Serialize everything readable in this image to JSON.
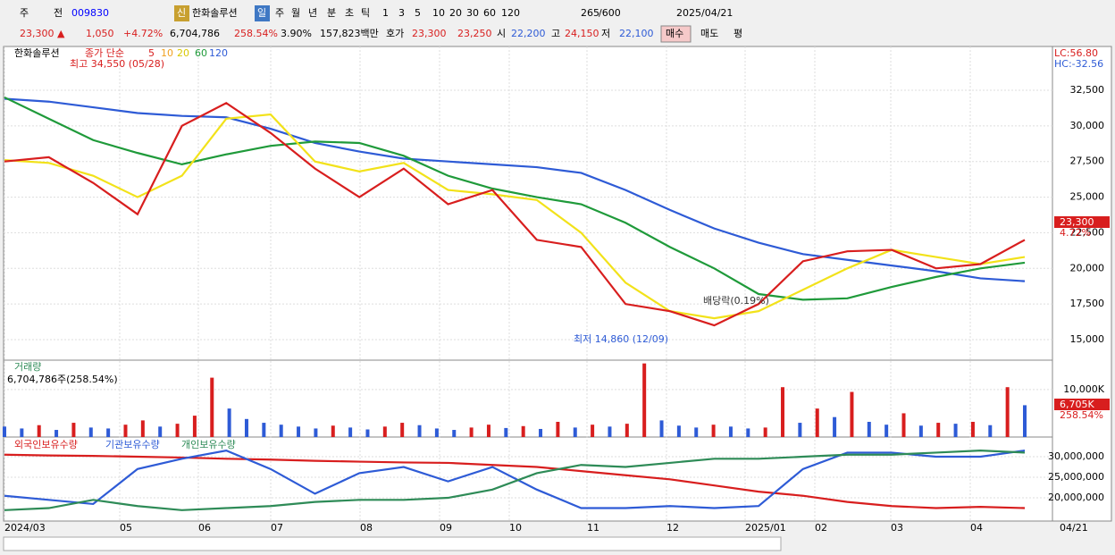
{
  "toolbar": {
    "items": [
      "주",
      "전",
      "009830",
      "한화솔루션",
      "신",
      "일",
      "주",
      "월",
      "년",
      "분",
      "초",
      "틱",
      "1",
      "3",
      "5",
      "10",
      "20",
      "30",
      "60",
      "120",
      "265",
      "/600",
      "2025/04/21"
    ]
  },
  "infobar": {
    "items": [
      "23,300 ▲",
      "1,050",
      "+4.72%",
      "6,704,786",
      "258.54%",
      "3.90%",
      "157,823백만",
      "호가",
      "23,300",
      "23,250",
      "시",
      "22,200",
      "고",
      "24,150",
      "저",
      "22,100",
      "매수",
      "매도",
      "평"
    ]
  },
  "price": {
    "legend": [
      "한화솔루션",
      "종가 단순",
      "5",
      "10",
      "20",
      "60",
      "120"
    ],
    "annotations": {
      "high": "최고 34,550 (05/28)",
      "low": "최저 14,860 (12/09)",
      "dividend": "배당락(0.19%)"
    },
    "right_labels": {
      "lc": "LC:56.80",
      "hc": "HC:-32.56",
      "last": "23,300",
      "change": "4.72%"
    },
    "ylim": [
      13560,
      35570
    ],
    "yticks": [
      {
        "value": 15000,
        "label": "15,000"
      },
      {
        "value": 17500,
        "label": "17,500"
      },
      {
        "value": 20000,
        "label": "20,000"
      },
      {
        "value": 22500,
        "label": "22,500"
      },
      {
        "value": 25000,
        "label": "25,000"
      },
      {
        "value": 27500,
        "label": "27,500"
      },
      {
        "value": 30000,
        "label": "30,000"
      },
      {
        "value": 32500,
        "label": "32,500"
      }
    ],
    "series": [
      {
        "name": "120",
        "color": "#2e5bd6",
        "values": [
          31900,
          31700,
          31300,
          30900,
          30700,
          30600,
          29800,
          28800,
          28200,
          27700,
          27500,
          27300,
          27100,
          26700,
          25500,
          24100,
          22800,
          21800,
          21000,
          20600,
          20200,
          19800,
          19300,
          19100
        ]
      },
      {
        "name": "60",
        "color": "#1f9a3a",
        "values": [
          32000,
          30500,
          29000,
          28100,
          27300,
          28000,
          28600,
          28900,
          28800,
          27900,
          26500,
          25600,
          25000,
          24500,
          23200,
          21500,
          20000,
          18200,
          17800,
          17900,
          18700,
          19400,
          20000,
          20400
        ]
      },
      {
        "name": "20",
        "color": "#f2e21a",
        "values": [
          27600,
          27400,
          26500,
          25000,
          26500,
          30500,
          30800,
          27500,
          26800,
          27400,
          25500,
          25200,
          24800,
          22500,
          19000,
          17000,
          16500,
          17000,
          18500,
          20000,
          21300,
          20800,
          20300,
          20800
        ]
      },
      {
        "name": "5",
        "color": "#d81e1e",
        "values": [
          27500,
          27800,
          26000,
          23800,
          30000,
          31600,
          29500,
          27000,
          25000,
          27000,
          24500,
          25500,
          22000,
          21500,
          17500,
          17000,
          16000,
          17500,
          20500,
          21200,
          21300,
          20000,
          20300,
          22000
        ]
      }
    ]
  },
  "volume": {
    "legend": "거래량",
    "summary": "6,704,786주(258.54%)",
    "last_label": "6,705K",
    "ratio_label": "258.54%",
    "ylim": [
      0,
      16000
    ],
    "yticks": [
      {
        "value": 10000,
        "label": "10,000K"
      }
    ],
    "values": [
      2200,
      1800,
      2500,
      1500,
      3000,
      2000,
      1800,
      2600,
      3500,
      2200,
      2800,
      4500,
      12500,
      6000,
      3800,
      3000,
      2600,
      2200,
      1800,
      2400,
      2000,
      1600,
      2200,
      3000,
      2500,
      1800,
      1500,
      2000,
      2600,
      1900,
      2300,
      1700,
      3200,
      2000,
      2600,
      2200,
      2800,
      15500,
      3500,
      2400,
      2000,
      2600,
      2200,
      1800,
      2000,
      10500,
      3000,
      6000,
      4200,
      9500,
      3200,
      2600,
      5000,
      2400,
      3000,
      2800,
      3200,
      2500,
      10500,
      6700
    ]
  },
  "holdings": {
    "ylim": [
      14.57,
      34.57
    ],
    "yticks": [
      {
        "value": 20,
        "label": "20,000,000"
      },
      {
        "value": 25,
        "label": "25,000,000"
      },
      {
        "value": 30,
        "label": "30,000,000"
      }
    ],
    "series": [
      {
        "name": "외국인보유수량",
        "color": "#d81e1e",
        "values": [
          30.5,
          30.3,
          30.2,
          30,
          29.8,
          29.5,
          29.3,
          29,
          28.8,
          28.6,
          28.5,
          28,
          27.5,
          26.5,
          25.5,
          24.5,
          23,
          21.5,
          20.5,
          19,
          18,
          17.5,
          17.8,
          17.5
        ]
      },
      {
        "name": "기관보유수량",
        "color": "#2e5bd6",
        "values": [
          20.5,
          19.5,
          18.5,
          27,
          29.5,
          31.5,
          27,
          21,
          26,
          27.5,
          24,
          27.5,
          22,
          17.5,
          17.5,
          18,
          17.5,
          18,
          27,
          31,
          31,
          30,
          30,
          31.5
        ]
      },
      {
        "name": "개인보유수량",
        "color": "#2e8b57",
        "values": [
          17,
          17.5,
          19.5,
          18,
          17,
          17.5,
          18,
          19,
          19.5,
          19.5,
          20,
          22,
          26,
          28,
          27.5,
          28.5,
          29.5,
          29.5,
          30,
          30.5,
          30.5,
          31,
          31.5,
          31
        ]
      }
    ]
  },
  "xaxis": {
    "labels": [
      "2024/03",
      "05",
      "06",
      "07",
      "08",
      "09",
      "10",
      "11",
      "12",
      "2025/01",
      "02",
      "03",
      "04"
    ],
    "end_label": "04/21"
  }
}
